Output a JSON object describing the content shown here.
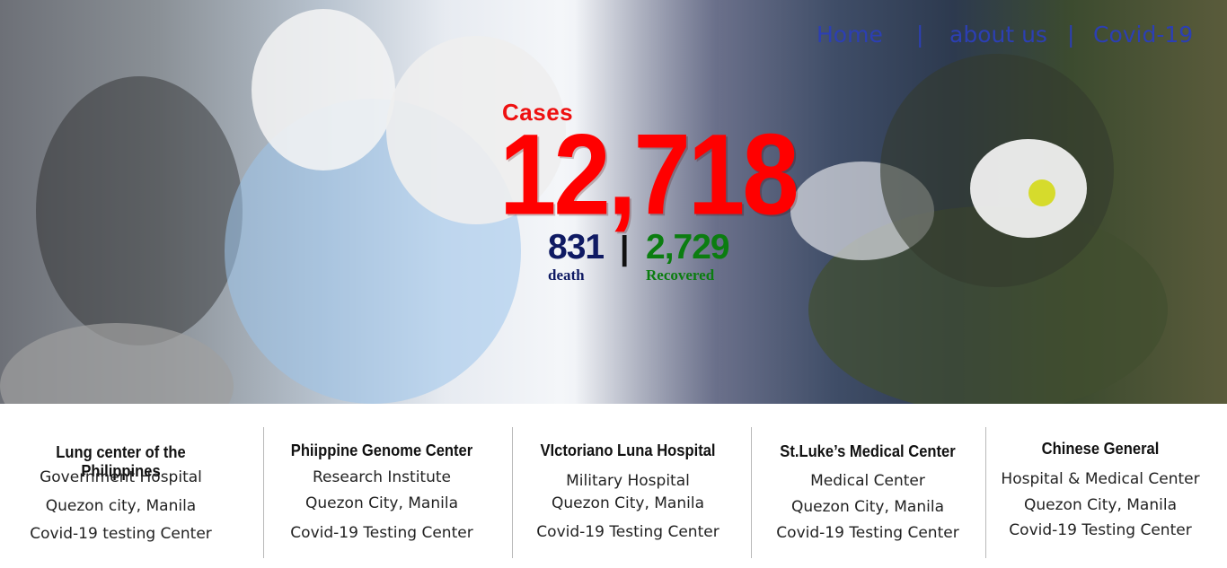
{
  "nav": {
    "items": [
      "Home",
      "about us",
      "Covid-19"
    ],
    "separator": "|"
  },
  "stats": {
    "cases_label": "Cases",
    "cases_value": "12,718",
    "death_value": "831",
    "death_label": "death",
    "separator": "|",
    "recovered_value": "2,729",
    "recovered_label": "Recovered"
  },
  "hospitals": [
    {
      "name": "Lung center of the Philippines",
      "lines": [
        "Government Hospital",
        "Quezon city, Manila",
        "Covid-19 testing Center"
      ]
    },
    {
      "name": "Phiippine Genome Center",
      "lines": [
        "Research Institute",
        "Quezon City, Manila",
        "Covid-19 Testing Center"
      ]
    },
    {
      "name": "VIctoriano Luna Hospital",
      "lines": [
        "Military Hospital",
        "Quezon City, Manila",
        "Covid-19 Testing Center"
      ]
    },
    {
      "name": "St.Luke’s Medical Center",
      "lines": [
        "Medical Center",
        "Quezon City, Manila",
        "Covid-19 Testing Center"
      ]
    },
    {
      "name": "Chinese General",
      "lines": [
        "Hospital & Medical Center",
        "Quezon City, Manila",
        "Covid-19 Testing Center"
      ]
    }
  ],
  "colors": {
    "nav": "#2c3fb3",
    "cases": "#ff0000",
    "death": "#0f1a63",
    "recovered": "#0b7d10"
  }
}
